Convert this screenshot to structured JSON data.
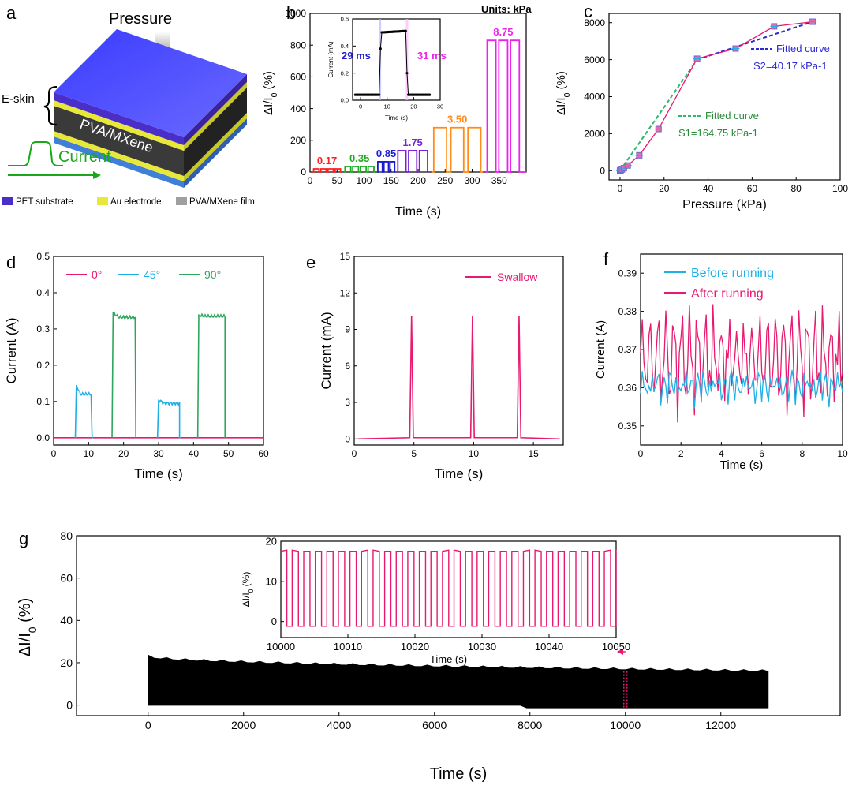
{
  "panels": [
    {
      "id": "a",
      "letter": "a"
    },
    {
      "id": "b",
      "letter": "b"
    },
    {
      "id": "c",
      "letter": "c"
    },
    {
      "id": "d",
      "letter": "d"
    },
    {
      "id": "e",
      "letter": "e"
    },
    {
      "id": "f",
      "letter": "f"
    },
    {
      "id": "g",
      "letter": "g"
    }
  ],
  "schematic": {
    "pressure_label": "Pressure",
    "eskin_label": "E-skin",
    "film_label": "PVA/MXene",
    "current_label": "Current",
    "legend": [
      {
        "label": "PET substrate",
        "color": "#4b2ec8"
      },
      {
        "label": "Au electrode",
        "color": "#e8e83a"
      },
      {
        "label": "PVA/MXene film",
        "color": "#a0a0a0"
      }
    ]
  },
  "chart_data": [
    {
      "id": "b",
      "type": "line",
      "xlabel": "Time (s)",
      "ylabel": "ΔI/I0 (%)",
      "xlim": [
        0,
        400
      ],
      "ylim": [
        0,
        1000
      ],
      "xticks": [
        0,
        25,
        75,
        125,
        175,
        225,
        275,
        325,
        375
      ],
      "xticklabels": [
        "0",
        "50",
        "100",
        "150",
        "200",
        "250",
        "300",
        "350"
      ],
      "xtickpos": [
        0,
        50,
        100,
        150,
        200,
        250,
        300,
        350
      ],
      "yticks": [
        0,
        200,
        400,
        600,
        800,
        1000
      ],
      "units_note": "Units: kPa",
      "steps": [
        {
          "label": "0.17",
          "color": "#ff1f1f",
          "start": 5,
          "end": 58,
          "pulses": 4,
          "high": 20
        },
        {
          "label": "0.35",
          "color": "#22aa22",
          "start": 63,
          "end": 120,
          "pulses": 4,
          "high": 35
        },
        {
          "label": "0.85",
          "color": "#1b1bd6",
          "start": 124,
          "end": 158,
          "pulses": 3,
          "high": 65
        },
        {
          "label": "1.75",
          "color": "#7a22d6",
          "start": 160,
          "end": 220,
          "pulses": 3,
          "high": 135
        },
        {
          "label": "3.50",
          "color": "#ff8c1a",
          "start": 225,
          "end": 320,
          "pulses": 3,
          "high": 280
        },
        {
          "label": "8.75",
          "color": "#ee22ee",
          "start": 325,
          "end": 390,
          "pulses": 3,
          "high": 830
        }
      ],
      "inset": {
        "xlabel": "Time (s)",
        "ylabel": "Current (mA)",
        "xlim": [
          -3,
          30
        ],
        "ylim": [
          0,
          0.6
        ],
        "xticks": [
          0,
          10,
          20,
          30
        ],
        "yticks": [
          0.0,
          0.2,
          0.4,
          0.6
        ],
        "rise_label": "29 ms",
        "fall_label": "31 ms",
        "low": 0.04,
        "high": 0.5,
        "rise_t": 7.3,
        "fall_t": 17.5
      }
    },
    {
      "id": "c",
      "type": "line",
      "xlabel": "Pressure (kPa)",
      "ylabel": "ΔI/I0 (%)",
      "xlim": [
        -5,
        100
      ],
      "ylim": [
        -500,
        8500
      ],
      "xticks": [
        0,
        20,
        40,
        60,
        80,
        100
      ],
      "yticks": [
        0,
        2000,
        4000,
        6000,
        8000
      ],
      "x": [
        0,
        0.17,
        0.35,
        0.85,
        1.75,
        3.5,
        8.75,
        17.5,
        35,
        52.5,
        70,
        87.5
      ],
      "y": [
        0,
        20,
        35,
        65,
        135,
        280,
        830,
        2250,
        6050,
        6600,
        7800,
        8050
      ],
      "fit1_label": "Fitted curve",
      "fit1_s": "S1=164.75 kPa-1",
      "fit2_label": "Fitted curve",
      "fit2_s": "S2=40.17 kPa-1"
    },
    {
      "id": "d",
      "type": "line",
      "xlabel": "Time (s)",
      "ylabel": "Current (A)",
      "xlim": [
        0,
        60
      ],
      "ylim": [
        -0.02,
        0.5
      ],
      "xticks": [
        0,
        10,
        20,
        30,
        40,
        50,
        60
      ],
      "yticks": [
        0.0,
        0.1,
        0.2,
        0.3,
        0.4,
        0.5
      ],
      "series": [
        {
          "name": "0°",
          "color": "#e8196e"
        },
        {
          "name": "45°",
          "color": "#1fb0e6"
        },
        {
          "name": "90°",
          "color": "#2ea65c"
        }
      ],
      "segments": [
        {
          "series": 1,
          "start": 6.5,
          "end": 11,
          "level": 0.12,
          "peak": 0.145
        },
        {
          "series": 2,
          "start": 17,
          "end": 23.5,
          "level": 0.332,
          "peak": 0.345
        },
        {
          "series": 1,
          "start": 30,
          "end": 36,
          "level": 0.095,
          "peak": 0.105
        },
        {
          "series": 2,
          "start": 41.5,
          "end": 49,
          "level": 0.335,
          "peak": 0.338
        }
      ]
    },
    {
      "id": "e",
      "type": "line",
      "xlabel": "Time (s)",
      "ylabel": "Current (mA)",
      "xlim": [
        0,
        17.5
      ],
      "ylim": [
        -0.5,
        15
      ],
      "xticks": [
        0,
        5,
        10,
        15
      ],
      "yticks": [
        0,
        3,
        6,
        9,
        12,
        15
      ],
      "series": [
        {
          "name": "Swallow",
          "color": "#e8196e"
        }
      ],
      "peaks": [
        4.8,
        9.9,
        13.8
      ],
      "peak_value": 10.1
    },
    {
      "id": "f",
      "type": "line",
      "xlabel": "Time (s)",
      "ylabel": "Current (A)",
      "xlim": [
        0,
        10
      ],
      "ylim": [
        0.345,
        0.395
      ],
      "xticks": [
        0,
        2,
        4,
        6,
        8,
        10
      ],
      "yticks": [
        0.35,
        0.36,
        0.37,
        0.38,
        0.39
      ],
      "series": [
        {
          "name": "Before running",
          "color": "#1fb0e6"
        },
        {
          "name": "After running",
          "color": "#e8196e"
        }
      ]
    },
    {
      "id": "g",
      "type": "area",
      "xlabel": "Time (s)",
      "ylabel": "ΔI/I0 (%)",
      "xlim": [
        -1500,
        14500
      ],
      "ylim": [
        -5,
        80
      ],
      "xticks": [
        0,
        2000,
        4000,
        6000,
        8000,
        10000,
        12000
      ],
      "yticks": [
        0,
        20,
        40,
        60,
        80
      ],
      "x_end": 13000,
      "upper_start": 23,
      "upper_end": 16,
      "lower": 0,
      "marker_x": 10000,
      "inset": {
        "xlabel": "Time (s)",
        "ylabel": "ΔI/I0 (%)",
        "xlim": [
          10000,
          10050
        ],
        "ylim": [
          -4,
          20
        ],
        "xticks": [
          10000,
          10010,
          10020,
          10030,
          10040,
          10050
        ],
        "yticks": [
          0,
          10,
          20
        ],
        "cycles": 29,
        "high": 17.5,
        "low": -1.2
      }
    }
  ]
}
